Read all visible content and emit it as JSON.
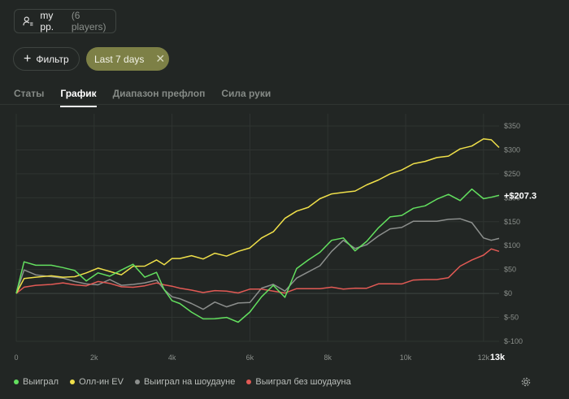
{
  "pool": {
    "name": "my pp.",
    "count": "(6 players)"
  },
  "filter": {
    "label": "Фильтр"
  },
  "date_chip": {
    "label": "Last 7 days",
    "close": "✕"
  },
  "tabs": [
    {
      "label": "Статы",
      "active": false
    },
    {
      "label": "График",
      "active": true
    },
    {
      "label": "Диапазон префлоп",
      "active": false
    },
    {
      "label": "Сила руки",
      "active": false
    }
  ],
  "chart_data": {
    "type": "line",
    "x_ticks": [
      "0",
      "2k",
      "4k",
      "6k",
      "8k",
      "10k",
      "12k"
    ],
    "x_current": "13k",
    "x_range": [
      0,
      12400
    ],
    "y_ticks": [
      "$350",
      "$300",
      "$250",
      "$200",
      "$150",
      "$100",
      "$50",
      "$0",
      "$-50",
      "$-100"
    ],
    "y_range": [
      -100,
      350
    ],
    "grid": true,
    "end_label": "+$207.3",
    "series": [
      {
        "name": "Выиграл",
        "color": "#63e05f",
        "x": [
          0,
          200,
          500,
          900,
          1200,
          1500,
          1800,
          2100,
          2400,
          2700,
          3000,
          3300,
          3600,
          3800,
          4000,
          4200,
          4500,
          4800,
          5100,
          5400,
          5700,
          6000,
          6300,
          6600,
          6900,
          7200,
          7500,
          7800,
          8100,
          8400,
          8700,
          9000,
          9300,
          9600,
          9900,
          10200,
          10500,
          10800,
          11100,
          11400,
          11700,
          12000,
          12200,
          12400
        ],
        "y": [
          0,
          65,
          60,
          62,
          52,
          48,
          28,
          40,
          35,
          50,
          64,
          32,
          44,
          10,
          -18,
          -22,
          -38,
          -50,
          -55,
          -50,
          -58,
          -42,
          -8,
          18,
          -5,
          50,
          70,
          88,
          108,
          115,
          90,
          112,
          135,
          160,
          165,
          175,
          182,
          198,
          210,
          192,
          218,
          200,
          198,
          205
        ]
      },
      {
        "name": "Олл-ин EV",
        "color": "#f0e04a",
        "x": [
          0,
          200,
          500,
          900,
          1200,
          1500,
          1800,
          2100,
          2400,
          2700,
          3000,
          3300,
          3600,
          3800,
          4000,
          4200,
          4500,
          4800,
          5100,
          5400,
          5700,
          6000,
          6300,
          6600,
          6900,
          7200,
          7500,
          7800,
          8100,
          8400,
          8700,
          9000,
          9300,
          9600,
          9900,
          10200,
          10500,
          10800,
          11100,
          11400,
          11700,
          12000,
          12200,
          12400
        ],
        "y": [
          0,
          30,
          35,
          40,
          32,
          35,
          45,
          50,
          45,
          40,
          60,
          55,
          70,
          62,
          70,
          72,
          80,
          75,
          82,
          78,
          90,
          92,
          115,
          130,
          160,
          170,
          180,
          200,
          205,
          210,
          215,
          230,
          235,
          250,
          260,
          268,
          275,
          285,
          290,
          300,
          308,
          325,
          318,
          305
        ]
      },
      {
        "name": "Выиграл на шоудауне",
        "color": "#8c8f8d",
        "x": [
          0,
          200,
          500,
          900,
          1200,
          1500,
          1800,
          2100,
          2400,
          2700,
          3000,
          3300,
          3600,
          3800,
          4000,
          4200,
          4500,
          4800,
          5100,
          5400,
          5700,
          6000,
          6300,
          6600,
          6900,
          7200,
          7500,
          7800,
          8100,
          8400,
          8700,
          9000,
          9300,
          9600,
          9900,
          10200,
          10500,
          10800,
          11100,
          11400,
          11700,
          12000,
          12200,
          12400
        ],
        "y": [
          0,
          48,
          40,
          38,
          30,
          25,
          22,
          15,
          28,
          18,
          22,
          20,
          28,
          10,
          -10,
          -12,
          -20,
          -30,
          -20,
          -28,
          -18,
          -22,
          10,
          20,
          8,
          30,
          45,
          60,
          85,
          110,
          95,
          105,
          118,
          135,
          140,
          148,
          150,
          152,
          158,
          154,
          148,
          118,
          108,
          115
        ]
      },
      {
        "name": "Выиграл без шоудауна",
        "color": "#e25a55",
        "x": [
          0,
          200,
          500,
          900,
          1200,
          1500,
          1800,
          2100,
          2400,
          2700,
          3000,
          3300,
          3600,
          3800,
          4000,
          4200,
          4500,
          4800,
          5100,
          5400,
          5700,
          6000,
          6300,
          6600,
          6900,
          7200,
          7500,
          7800,
          8100,
          8400,
          8700,
          9000,
          9300,
          9600,
          9900,
          10200,
          10500,
          10800,
          11100,
          11400,
          11700,
          12000,
          12200,
          12400
        ],
        "y": [
          0,
          12,
          18,
          22,
          20,
          18,
          18,
          22,
          20,
          15,
          16,
          14,
          22,
          20,
          12,
          10,
          8,
          5,
          4,
          5,
          3,
          6,
          8,
          6,
          4,
          8,
          10,
          12,
          10,
          8,
          12,
          14,
          18,
          20,
          22,
          25,
          28,
          30,
          36,
          55,
          70,
          82,
          90,
          88
        ]
      }
    ]
  },
  "icons": {
    "pool": "user-icon",
    "filter": "plus-icon",
    "close": "close-icon",
    "settings": "gear-icon"
  }
}
